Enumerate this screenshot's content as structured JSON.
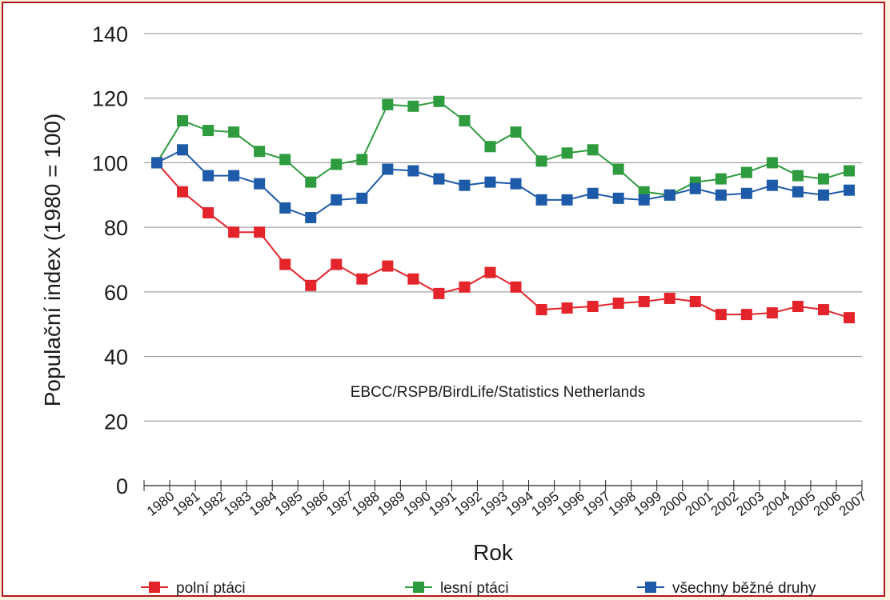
{
  "chart_data": {
    "type": "line",
    "xlabel": "Rok",
    "ylabel": "Populační index (1980 = 100)",
    "ylim": [
      0,
      140
    ],
    "yticks": [
      0,
      20,
      40,
      60,
      80,
      100,
      120,
      140
    ],
    "grid": "horizontal",
    "legend_position": "bottom",
    "annotation": "EBCC/RSPB/BirdLife/Statistics Netherlands",
    "x": [
      "1980",
      "1981",
      "1982",
      "1983",
      "1984",
      "1985",
      "1986",
      "1987",
      "1988",
      "1989",
      "1990",
      "1991",
      "1992",
      "1993",
      "1994",
      "1995",
      "1996",
      "1997",
      "1998",
      "1999",
      "2000",
      "2001",
      "2002",
      "2003",
      "2004",
      "2005",
      "2006",
      "2007"
    ],
    "series": [
      {
        "name": "polní ptáci",
        "color": "#e3242b",
        "values": [
          100,
          91,
          84.5,
          78.5,
          78.5,
          68.5,
          62,
          68.5,
          64,
          68,
          64,
          59.5,
          61.5,
          66,
          61.5,
          54.5,
          55,
          55.5,
          56.5,
          57,
          58,
          57,
          53,
          53,
          53.5,
          55.5,
          54.5,
          52
        ]
      },
      {
        "name": "lesní ptáci",
        "color": "#2e9b3e",
        "values": [
          100,
          113,
          110,
          109.5,
          103.5,
          101,
          94,
          99.5,
          101,
          118,
          117.5,
          119,
          113,
          105,
          109.5,
          100.5,
          103,
          104,
          98,
          91,
          90,
          94,
          95,
          97,
          100,
          96,
          95,
          97.5
        ]
      },
      {
        "name": "všechny běžné druhy",
        "color": "#1d5aa8",
        "values": [
          100,
          104,
          96,
          96,
          93.5,
          86,
          83,
          88.5,
          89,
          98,
          97.5,
          95,
          93,
          94,
          93.5,
          88.5,
          88.5,
          90.5,
          89,
          88.5,
          90,
          92,
          90,
          90.5,
          93,
          91,
          90,
          91.5
        ]
      }
    ]
  }
}
